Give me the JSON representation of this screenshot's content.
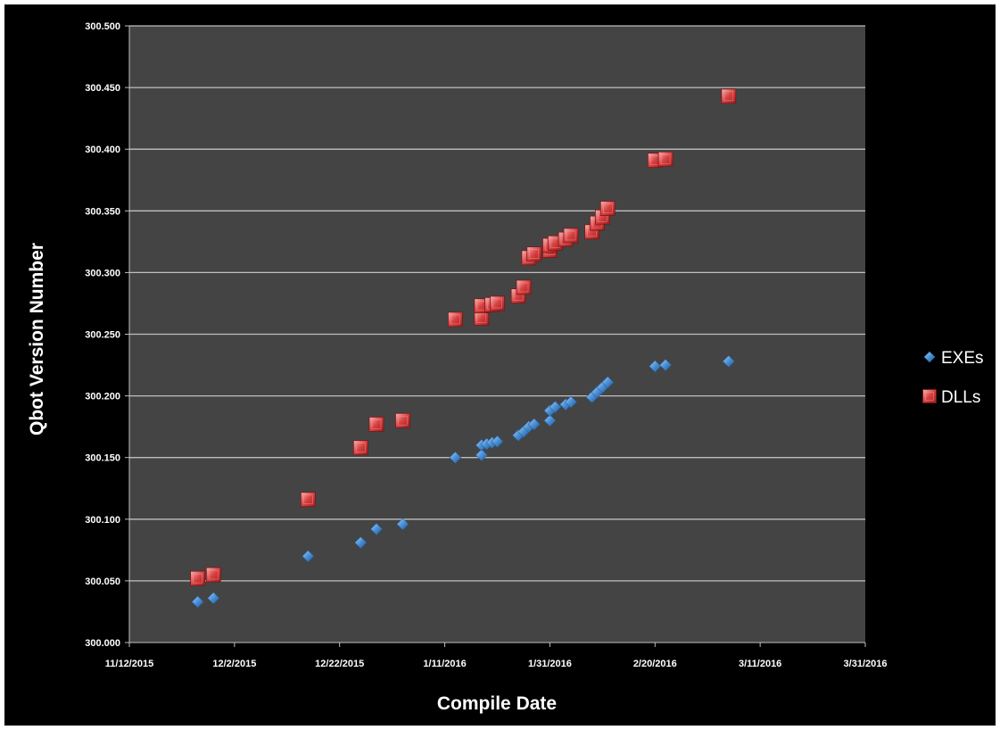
{
  "chart_data": {
    "type": "scatter",
    "title": "",
    "xlabel": "Compile Date",
    "ylabel": "Qbot Version Number",
    "x_axis_type": "date",
    "xlim": [
      "2015-11-12",
      "2016-03-31"
    ],
    "ylim": [
      300.0,
      300.5
    ],
    "x_ticks": [
      "2015-11-12",
      "2015-12-02",
      "2015-12-22",
      "2016-01-11",
      "2016-01-31",
      "2016-02-20",
      "2016-03-11",
      "2016-03-31"
    ],
    "x_tick_labels": [
      "11/12/2015",
      "12/2/2015",
      "12/22/2015",
      "1/11/2016",
      "1/31/2016",
      "2/20/2016",
      "3/11/2016",
      "3/31/2016"
    ],
    "y_ticks": [
      300.0,
      300.05,
      300.1,
      300.15,
      300.2,
      300.25,
      300.3,
      300.35,
      300.4,
      300.45,
      300.5
    ],
    "y_tick_labels": [
      "300.000",
      "300.050",
      "300.100",
      "300.150",
      "300.200",
      "300.250",
      "300.300",
      "300.350",
      "300.400",
      "300.450",
      "300.500"
    ],
    "grid": true,
    "legend_position": "right",
    "background_color": "#000000",
    "plot_background_color": "#444444",
    "gridline_color": "#bfbfbf",
    "series": [
      {
        "name": "EXEs",
        "marker": "diamond",
        "color": "#4a8fd4",
        "points": [
          [
            "2015-11-25",
            300.033
          ],
          [
            "2015-11-28",
            300.036
          ],
          [
            "2015-12-16",
            300.07
          ],
          [
            "2015-12-26",
            300.081
          ],
          [
            "2015-12-29",
            300.092
          ],
          [
            "2016-01-03",
            300.096
          ],
          [
            "2016-01-13",
            300.15
          ],
          [
            "2016-01-18",
            300.152
          ],
          [
            "2016-01-18",
            300.16
          ],
          [
            "2016-01-19",
            300.161
          ],
          [
            "2016-01-20",
            300.162
          ],
          [
            "2016-01-21",
            300.163
          ],
          [
            "2016-01-25",
            300.168
          ],
          [
            "2016-01-26",
            300.171
          ],
          [
            "2016-01-27",
            300.175
          ],
          [
            "2016-01-28",
            300.177
          ],
          [
            "2016-01-31",
            300.18
          ],
          [
            "2016-01-31",
            300.188
          ],
          [
            "2016-02-01",
            300.191
          ],
          [
            "2016-02-03",
            300.193
          ],
          [
            "2016-02-04",
            300.195
          ],
          [
            "2016-02-08",
            300.199
          ],
          [
            "2016-02-09",
            300.203
          ],
          [
            "2016-02-10",
            300.207
          ],
          [
            "2016-02-11",
            300.211
          ],
          [
            "2016-02-20",
            300.224
          ],
          [
            "2016-02-22",
            300.225
          ],
          [
            "2016-03-05",
            300.228
          ]
        ]
      },
      {
        "name": "DLLs",
        "marker": "square",
        "color": "#e04848",
        "points": [
          [
            "2015-11-25",
            300.052
          ],
          [
            "2015-11-28",
            300.055
          ],
          [
            "2015-12-16",
            300.116
          ],
          [
            "2015-12-26",
            300.158
          ],
          [
            "2015-12-29",
            300.177
          ],
          [
            "2016-01-03",
            300.18
          ],
          [
            "2016-01-13",
            300.262
          ],
          [
            "2016-01-18",
            300.263
          ],
          [
            "2016-01-18",
            300.273
          ],
          [
            "2016-01-20",
            300.274
          ],
          [
            "2016-01-21",
            300.275
          ],
          [
            "2016-01-25",
            300.281
          ],
          [
            "2016-01-26",
            300.288
          ],
          [
            "2016-01-27",
            300.312
          ],
          [
            "2016-01-28",
            300.315
          ],
          [
            "2016-01-31",
            300.318
          ],
          [
            "2016-01-31",
            300.322
          ],
          [
            "2016-02-01",
            300.324
          ],
          [
            "2016-02-03",
            300.327
          ],
          [
            "2016-02-04",
            300.33
          ],
          [
            "2016-02-08",
            300.333
          ],
          [
            "2016-02-09",
            300.34
          ],
          [
            "2016-02-10",
            300.345
          ],
          [
            "2016-02-11",
            300.352
          ],
          [
            "2016-02-20",
            300.391
          ],
          [
            "2016-02-22",
            300.392
          ],
          [
            "2016-03-05",
            300.443
          ]
        ]
      }
    ]
  }
}
